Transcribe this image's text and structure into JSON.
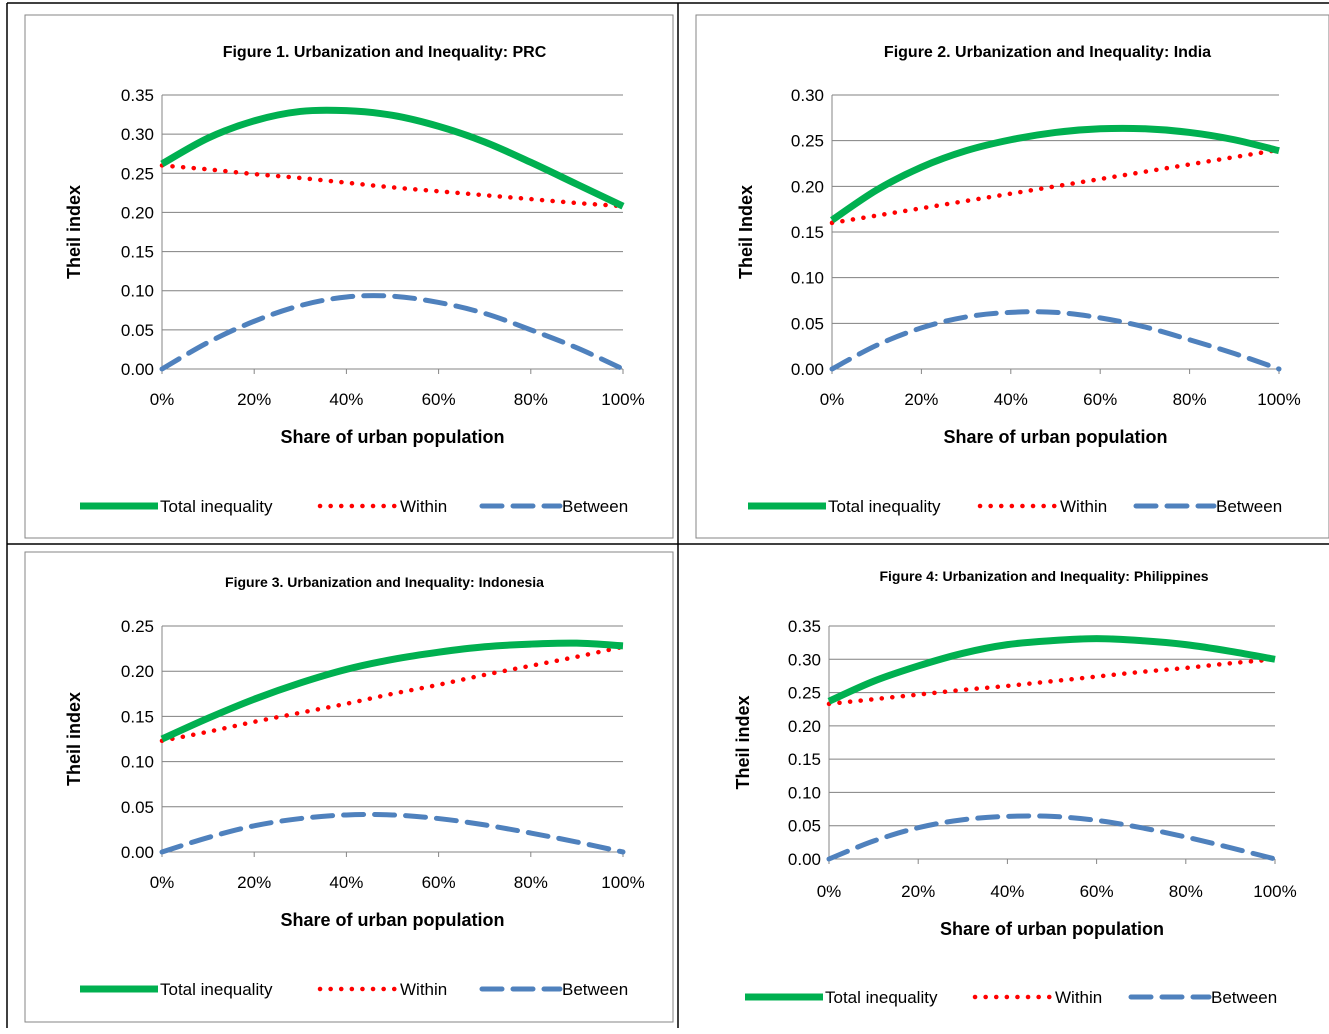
{
  "colors": {
    "total": "#00B050",
    "within": "#FF0000",
    "between": "#4F81BD",
    "grid": "#808080",
    "border": "#000000"
  },
  "chart_data": [
    {
      "type": "line",
      "title": "Figure 1. Urbanization and Inequality: PRC",
      "xlabel": "Share of urban population",
      "ylabel": "Theil index",
      "xlim": [
        0,
        100
      ],
      "ylim": [
        0,
        0.35
      ],
      "x_ticks": [
        "0%",
        "20%",
        "40%",
        "60%",
        "80%",
        "100%"
      ],
      "y_ticks": [
        "0.00",
        "0.05",
        "0.10",
        "0.15",
        "0.20",
        "0.25",
        "0.30",
        "0.35"
      ],
      "grid": true,
      "legend": "bottom",
      "x": [
        0,
        10,
        20,
        30,
        40,
        50,
        60,
        70,
        80,
        90,
        100
      ],
      "series": [
        {
          "name": "Total inequality",
          "style": "solid",
          "values": [
            0.262,
            0.295,
            0.317,
            0.329,
            0.33,
            0.324,
            0.31,
            0.29,
            0.264,
            0.236,
            0.208
          ]
        },
        {
          "name": "Within",
          "style": "dotted",
          "values": [
            0.26,
            0.255,
            0.249,
            0.244,
            0.238,
            0.232,
            0.227,
            0.222,
            0.217,
            0.212,
            0.208
          ]
        },
        {
          "name": "Between",
          "style": "dashed",
          "values": [
            0.0,
            0.034,
            0.061,
            0.081,
            0.092,
            0.093,
            0.085,
            0.071,
            0.05,
            0.027,
            0.0
          ]
        }
      ]
    },
    {
      "type": "line",
      "title": "Figure 2. Urbanization and Inequality: India",
      "xlabel": "Share of urban population",
      "ylabel": "Theil Index",
      "xlim": [
        0,
        100
      ],
      "ylim": [
        0,
        0.3
      ],
      "x_ticks": [
        "0%",
        "20%",
        "40%",
        "60%",
        "80%",
        "100%"
      ],
      "y_ticks": [
        "0.00",
        "0.05",
        "0.10",
        "0.15",
        "0.20",
        "0.25",
        "0.30"
      ],
      "grid": true,
      "legend": "bottom",
      "x": [
        0,
        10,
        20,
        30,
        40,
        50,
        60,
        70,
        80,
        90,
        100
      ],
      "series": [
        {
          "name": "Total inequality",
          "style": "solid",
          "values": [
            0.163,
            0.196,
            0.221,
            0.239,
            0.251,
            0.259,
            0.263,
            0.263,
            0.259,
            0.251,
            0.239
          ]
        },
        {
          "name": "Within",
          "style": "dotted",
          "values": [
            0.16,
            0.168,
            0.176,
            0.184,
            0.192,
            0.2,
            0.208,
            0.216,
            0.224,
            0.232,
            0.24
          ]
        },
        {
          "name": "Between",
          "style": "dashed",
          "values": [
            0.0,
            0.026,
            0.045,
            0.057,
            0.062,
            0.062,
            0.056,
            0.046,
            0.032,
            0.017,
            0.0
          ]
        }
      ]
    },
    {
      "type": "line",
      "title": "Figure 3. Urbanization and Inequality: Indonesia",
      "xlabel": "Share of urban population",
      "ylabel": "Theil index",
      "xlim": [
        0,
        100
      ],
      "ylim": [
        0,
        0.25
      ],
      "x_ticks": [
        "0%",
        "20%",
        "40%",
        "60%",
        "80%",
        "100%"
      ],
      "y_ticks": [
        "0.00",
        "0.05",
        "0.10",
        "0.15",
        "0.20",
        "0.25"
      ],
      "grid": true,
      "legend": "bottom",
      "x": [
        0,
        10,
        20,
        30,
        40,
        50,
        60,
        70,
        80,
        90,
        100
      ],
      "series": [
        {
          "name": "Total inequality",
          "style": "solid",
          "values": [
            0.125,
            0.148,
            0.169,
            0.187,
            0.202,
            0.213,
            0.221,
            0.227,
            0.23,
            0.231,
            0.228
          ]
        },
        {
          "name": "Within",
          "style": "dotted",
          "values": [
            0.123,
            0.133,
            0.144,
            0.154,
            0.164,
            0.175,
            0.185,
            0.196,
            0.206,
            0.216,
            0.227
          ]
        },
        {
          "name": "Between",
          "style": "dashed",
          "values": [
            0.0,
            0.016,
            0.029,
            0.037,
            0.041,
            0.041,
            0.037,
            0.03,
            0.021,
            0.011,
            0.0
          ]
        }
      ]
    },
    {
      "type": "line",
      "title": "Figure 4: Urbanization and Inequality: Philippines",
      "xlabel": "Share of urban population",
      "ylabel": "Theil index",
      "xlim": [
        0,
        100
      ],
      "ylim": [
        0,
        0.35
      ],
      "x_ticks": [
        "0%",
        "20%",
        "40%",
        "60%",
        "80%",
        "100%"
      ],
      "y_ticks": [
        "0.00",
        "0.05",
        "0.10",
        "0.15",
        "0.20",
        "0.25",
        "0.30",
        "0.35"
      ],
      "grid": true,
      "legend": "bottom",
      "x": [
        0,
        10,
        20,
        30,
        40,
        50,
        60,
        70,
        80,
        90,
        100
      ],
      "series": [
        {
          "name": "Total inequality",
          "style": "solid",
          "values": [
            0.237,
            0.267,
            0.29,
            0.309,
            0.322,
            0.328,
            0.331,
            0.328,
            0.322,
            0.312,
            0.3
          ]
        },
        {
          "name": "Within",
          "style": "dotted",
          "values": [
            0.233,
            0.24,
            0.247,
            0.254,
            0.26,
            0.267,
            0.274,
            0.281,
            0.287,
            0.294,
            0.3
          ]
        },
        {
          "name": "Between",
          "style": "dashed",
          "values": [
            0.0,
            0.027,
            0.047,
            0.059,
            0.064,
            0.064,
            0.058,
            0.047,
            0.033,
            0.017,
            0.0
          ]
        }
      ]
    }
  ]
}
